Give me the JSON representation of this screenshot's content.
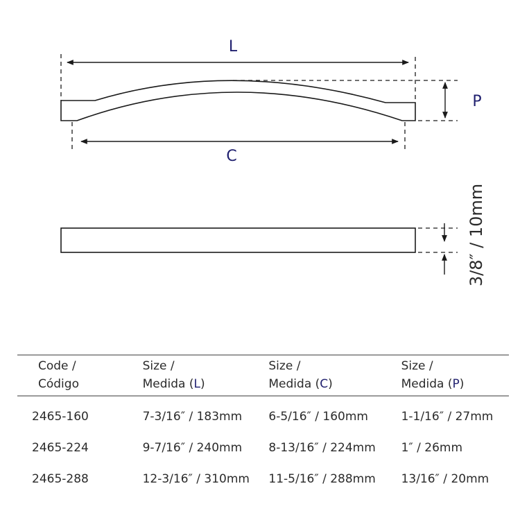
{
  "dimensions": {
    "length_label": "L",
    "center_label": "C",
    "projection_label": "P",
    "thickness_label": "3/8″ / 10mm"
  },
  "table": {
    "headers": [
      {
        "line1": "Code /",
        "line2": "Código",
        "letter": ""
      },
      {
        "line1": "Size /",
        "line2": "Medida (",
        "letter": "L",
        "close": ")"
      },
      {
        "line1": "Size /",
        "line2": "Medida (",
        "letter": "C",
        "close": ")"
      },
      {
        "line1": "Size /",
        "line2": "Medida (",
        "letter": "P",
        "close": ")"
      }
    ],
    "rows": [
      [
        "2465-160",
        "7-3/16″ / 183mm",
        "6-5/16″ / 160mm",
        "1-1/16″ / 27mm"
      ],
      [
        "2465-224",
        "9-7/16″ / 240mm",
        "8-13/16″ / 224mm",
        "1″ / 26mm"
      ],
      [
        "2465-288",
        "12-3/16″ / 310mm",
        "11-5/16″ / 288mm",
        "13/16″ / 20mm"
      ]
    ]
  },
  "colors": {
    "line": "#1a1a1a",
    "dimension_letter": "#1f1f6e",
    "table_rule": "#9a9a9a"
  }
}
